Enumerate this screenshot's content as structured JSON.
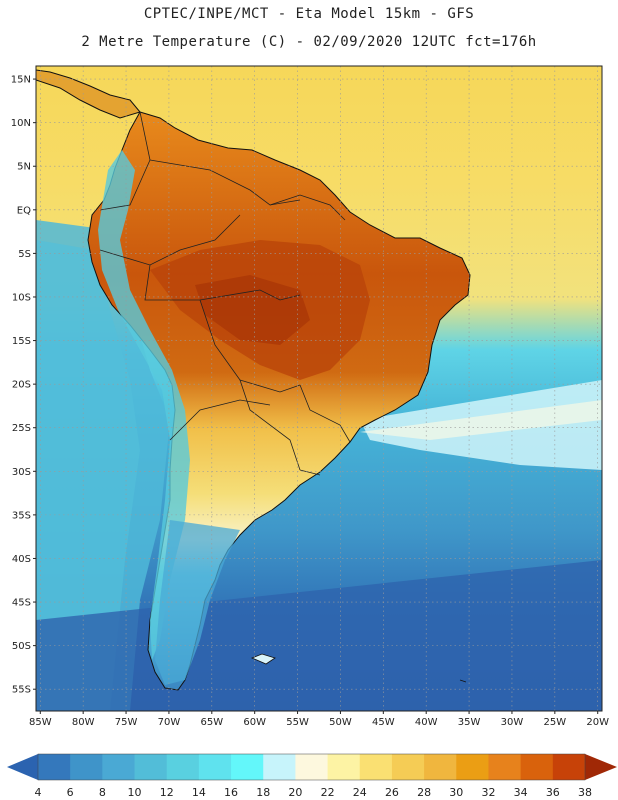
{
  "header": {
    "line1": "CPTEC/INPE/MCT -  Eta Model 15km - GFS",
    "line2": "2 Metre Temperature (C) - 02/09/2020 12UTC fct=176h"
  },
  "map": {
    "lat_ticks": [
      "15N",
      "10N",
      "5N",
      "EQ",
      "5S",
      "10S",
      "15S",
      "20S",
      "25S",
      "30S",
      "35S",
      "40S",
      "45S",
      "50S",
      "55S"
    ],
    "lon_ticks": [
      "85W",
      "80W",
      "75W",
      "70W",
      "65W",
      "60W",
      "55W",
      "50W",
      "45W",
      "40W",
      "35W",
      "30W",
      "25W",
      "20W"
    ],
    "extent": {
      "lon_min": -85.5,
      "lon_max": -19.5,
      "lat_max": 16.5,
      "lat_min": -57.5
    },
    "ocean_color": "#f5e071",
    "land_color": "#d46a12"
  },
  "colorbar": {
    "labels": [
      "4",
      "6",
      "8",
      "10",
      "12",
      "14",
      "16",
      "18",
      "20",
      "22",
      "24",
      "26",
      "28",
      "30",
      "32",
      "34",
      "36",
      "38"
    ],
    "colors": [
      "#2b63b0",
      "#3478bc",
      "#3f94c9",
      "#4aa9d4",
      "#52bdd8",
      "#59d0e0",
      "#5fe2ee",
      "#63f7fa",
      "#c7f4fb",
      "#fdf8de",
      "#fdf3a4",
      "#fae072",
      "#f5cc55",
      "#f0b63e",
      "#eb9e14",
      "#e7821c",
      "#d9620c",
      "#c74208",
      "#a02806"
    ]
  }
}
